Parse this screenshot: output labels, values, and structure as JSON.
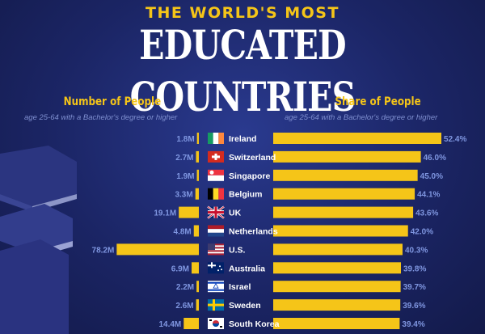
{
  "header": {
    "kicker": "THE WORLD'S MOST",
    "title": "EDUCATED COUNTRIES"
  },
  "left_header": {
    "title": "Number of People",
    "subtitle": "age 25-64 with a Bachelor's degree or higher"
  },
  "right_header": {
    "title": "Share of People",
    "subtitle": "age 25-64 with a Bachelor's degree or higher"
  },
  "colors": {
    "bar": "#f5c518",
    "value_text": "#7f96e0",
    "background": "#1b2565"
  },
  "chart_data": [
    {
      "type": "bar",
      "orientation": "horizontal",
      "direction": "right-to-left",
      "title": "Number of People",
      "subtitle": "age 25-64 with a Bachelor's degree or higher",
      "categories": [
        "Ireland",
        "Switzerland",
        "Singapore",
        "Belgium",
        "UK",
        "Netherlands",
        "U.S.",
        "Australia",
        "Israel",
        "Sweden",
        "South Korea"
      ],
      "values": [
        1.8,
        2.7,
        1.9,
        3.3,
        19.1,
        4.8,
        78.2,
        6.9,
        2.2,
        2.6,
        14.4
      ],
      "labels": [
        "1.8M",
        "2.7M",
        "1.9M",
        "3.3M",
        "19.1M",
        "4.8M",
        "78.2M",
        "6.9M",
        "2.2M",
        "2.6M",
        "14.4M"
      ],
      "unit": "M"
    },
    {
      "type": "bar",
      "orientation": "horizontal",
      "title": "Share of People",
      "subtitle": "age 25-64 with a Bachelor's degree or higher",
      "categories": [
        "Ireland",
        "Switzerland",
        "Singapore",
        "Belgium",
        "UK",
        "Netherlands",
        "U.S.",
        "Australia",
        "Israel",
        "Sweden",
        "South Korea"
      ],
      "values": [
        52.4,
        46.0,
        45.0,
        44.1,
        43.6,
        42.0,
        40.3,
        39.8,
        39.7,
        39.6,
        39.4
      ],
      "labels": [
        "52.4%",
        "46.0%",
        "45.0%",
        "44.1%",
        "43.6%",
        "42.0%",
        "40.3%",
        "39.8%",
        "39.7%",
        "39.6%",
        "39.4%"
      ],
      "unit": "%"
    }
  ],
  "flags": [
    "ireland-flag-icon",
    "switzerland-flag-icon",
    "singapore-flag-icon",
    "belgium-flag-icon",
    "uk-flag-icon",
    "netherlands-flag-icon",
    "us-flag-icon",
    "australia-flag-icon",
    "israel-flag-icon",
    "sweden-flag-icon",
    "south-korea-flag-icon"
  ]
}
